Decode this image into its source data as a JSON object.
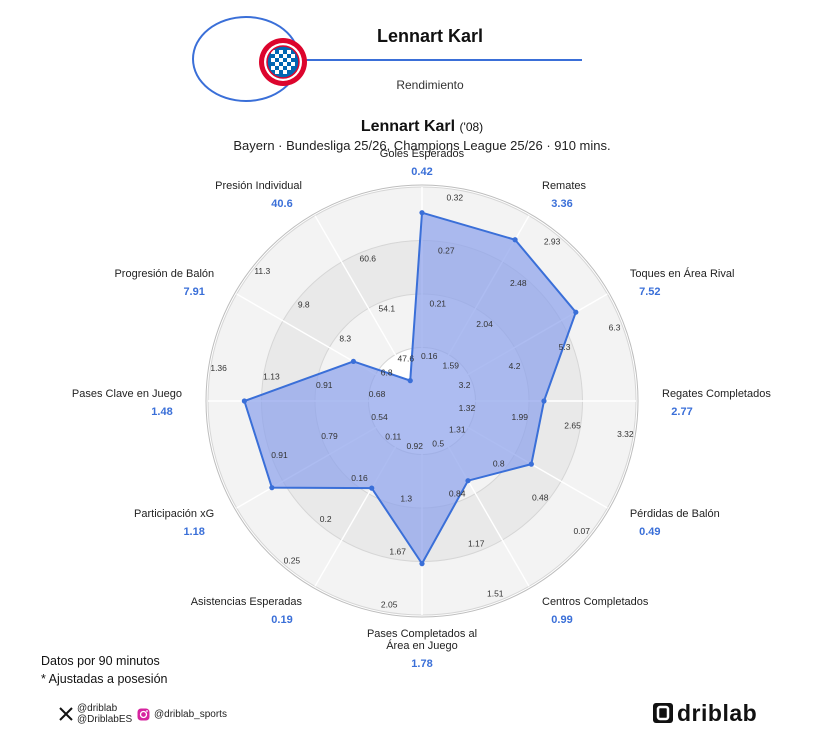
{
  "header": {
    "name": "Lennart Karl",
    "subtitle": "Rendimiento"
  },
  "title": {
    "name": "Lennart Karl",
    "year": "('08)"
  },
  "subtitle": "Bayern · Bundesliga 25/26, Champions League 25/26 · 910 mins.",
  "footer": {
    "note1": "Datos por 90 minutos",
    "note2": "* Ajustadas a posesión"
  },
  "social": {
    "x_handle1": "@driblab",
    "x_handle2": "@DriblabES",
    "instagram": "@driblab_sports"
  },
  "brand": {
    "name": "driblab"
  },
  "colors": {
    "accent": "#3a6fd8",
    "fill": "#8ea2ec",
    "value": "#3a6fd8"
  },
  "chart_data": {
    "type": "radar",
    "player": "Lennart Karl",
    "metrics": [
      {
        "label": "Goles Esperados",
        "value": "0.42",
        "scale": [
          "0.16",
          "0.21",
          "0.27",
          "0.32"
        ],
        "r": 0.88
      },
      {
        "label": "Remates",
        "value": "3.36",
        "scale": [
          "1.59",
          "2.04",
          "2.48",
          "2.93"
        ],
        "r": 0.87
      },
      {
        "label": "Toques en Área Rival",
        "value": "7.52",
        "scale": [
          "3.2",
          "4.2",
          "5.3",
          "6.3"
        ],
        "r": 0.83
      },
      {
        "label": "Regates Completados",
        "value": "2.77",
        "scale": [
          "1.32",
          "1.99",
          "2.65",
          "3.32"
        ],
        "r": 0.57
      },
      {
        "label": "Pérdidas de Balón",
        "value": "0.49",
        "scale": [
          "1.31",
          "0.8",
          "0.48",
          "0.07"
        ],
        "r": 0.59
      },
      {
        "label": "Centros Completados",
        "value": "0.99",
        "scale": [
          "0.5",
          "0.84",
          "1.17",
          "1.51"
        ],
        "r": 0.43
      },
      {
        "label": "Pases Completados al Área en Juego",
        "value": "1.78",
        "scale": [
          "0.92",
          "1.3",
          "1.67",
          "2.05"
        ],
        "r": 0.76
      },
      {
        "label": "Asistencias Esperadas",
        "value": "0.19",
        "scale": [
          "0.11",
          "0.16",
          "0.2",
          "0.25"
        ],
        "r": 0.47
      },
      {
        "label": "Participación xG",
        "value": "1.18",
        "scale": [
          "0.54",
          "0.79",
          "0.91"
        ],
        "r": 0.81
      },
      {
        "label": "Pases Clave en Juego",
        "value": "1.48",
        "scale": [
          "0.68",
          "0.91",
          "1.13",
          "1.36"
        ],
        "r": 0.83
      },
      {
        "label": "Progresión de Balón",
        "value": "7.91",
        "scale": [
          "6.8",
          "8.3",
          "9.8",
          "11.3"
        ],
        "r": 0.37
      },
      {
        "label": "Presión Individual",
        "value": "40.6",
        "scale": [
          "47.6",
          "54.1",
          "60.6"
        ],
        "r": 0.11
      }
    ]
  }
}
